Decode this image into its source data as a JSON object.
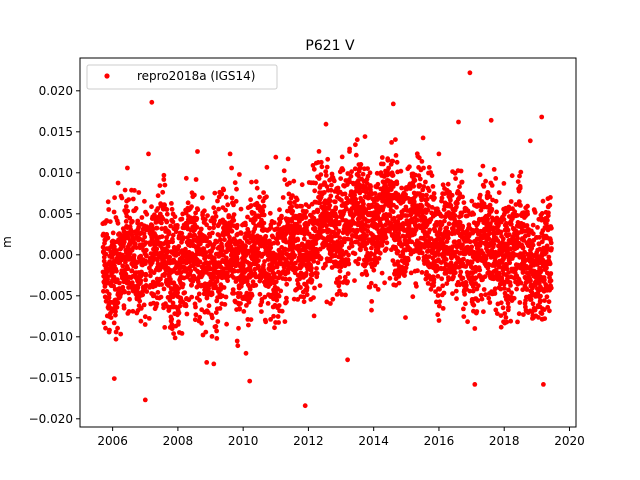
{
  "chart_data": {
    "type": "scatter",
    "title": "P621 V",
    "xlabel": "",
    "ylabel": "m",
    "xlim": [
      2005.0,
      2020.2
    ],
    "ylim": [
      -0.021,
      0.024
    ],
    "xticks": [
      2006,
      2008,
      2010,
      2012,
      2014,
      2016,
      2018,
      2020
    ],
    "xtick_labels": [
      "2006",
      "2008",
      "2010",
      "2012",
      "2014",
      "2016",
      "2018",
      "2020"
    ],
    "yticks": [
      -0.02,
      -0.015,
      -0.01,
      -0.005,
      0.0,
      0.005,
      0.01,
      0.015,
      0.02
    ],
    "ytick_labels": [
      "−0.020",
      "−0.015",
      "−0.010",
      "−0.005",
      "0.000",
      "0.005",
      "0.010",
      "0.015",
      "0.020"
    ],
    "grid": false,
    "legend_position": "top-left",
    "series": [
      {
        "name": "repro2018a (IGS14)",
        "color": "#ff0000",
        "marker": "circle",
        "x_start": 2005.7,
        "x_end": 2019.45,
        "trend": [
          [
            2005.7,
            -0.001
          ],
          [
            2008.0,
            -0.0005
          ],
          [
            2011.0,
            0.0
          ],
          [
            2013.0,
            0.004
          ],
          [
            2014.5,
            0.005
          ],
          [
            2016.0,
            0.002
          ],
          [
            2018.0,
            0.0005
          ],
          [
            2019.45,
            -0.001
          ]
        ],
        "outliers": [
          [
            2016.95,
            0.0222
          ],
          [
            2007.2,
            0.0186
          ],
          [
            2014.6,
            0.0184
          ],
          [
            2019.15,
            0.0168
          ],
          [
            2017.6,
            0.0164
          ],
          [
            2016.6,
            0.0162
          ],
          [
            2011.9,
            -0.0184
          ],
          [
            2007.0,
            -0.0177
          ],
          [
            2006.05,
            -0.0151
          ],
          [
            2010.2,
            -0.0154
          ],
          [
            2013.2,
            -0.0128
          ],
          [
            2009.1,
            -0.0133
          ],
          [
            2017.1,
            -0.0158
          ],
          [
            2019.2,
            -0.0158
          ],
          [
            2008.6,
            0.0126
          ],
          [
            2009.6,
            0.0123
          ],
          [
            2011.0,
            0.0119
          ],
          [
            2018.8,
            0.0139
          ],
          [
            2016.0,
            0.0123
          ],
          [
            2007.1,
            0.0123
          ]
        ]
      }
    ]
  }
}
